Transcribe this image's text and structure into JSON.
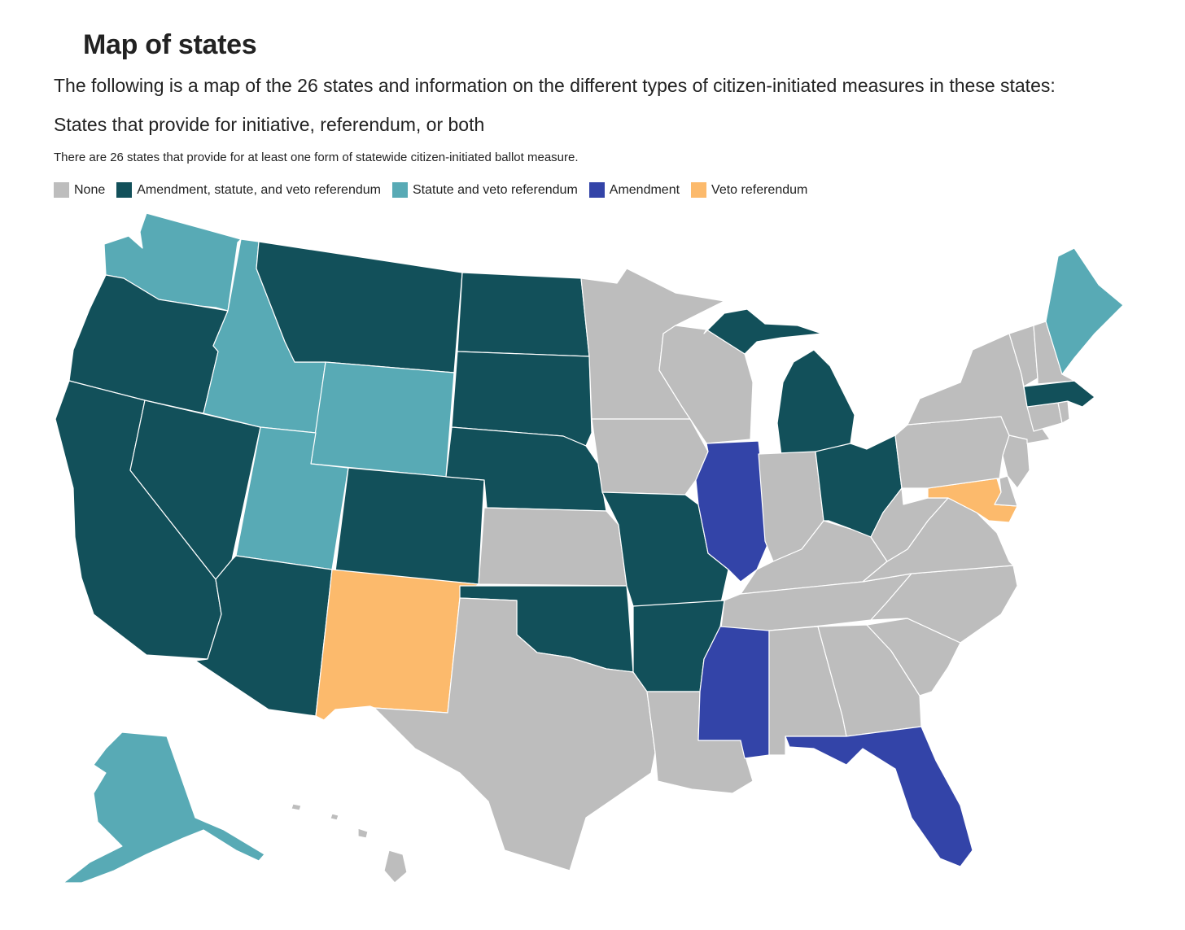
{
  "heading": "Map of states",
  "intro": "The following is a map of the 26 states and information on the different types of citizen-initiated measures in these states:",
  "map": {
    "title": "States that provide for initiative, referendum, or both",
    "subtitle": "There are 26 states that provide for at least one form of statewide citizen-initiated ballot measure.",
    "legend": [
      {
        "key": "none",
        "label": "None",
        "color": "#bdbdbd"
      },
      {
        "key": "asv",
        "label": "Amendment, statute, and veto referendum",
        "color": "#12505a"
      },
      {
        "key": "sv",
        "label": "Statute and veto referendum",
        "color": "#58aab5"
      },
      {
        "key": "am",
        "label": "Amendment",
        "color": "#3344a8"
      },
      {
        "key": "vr",
        "label": "Veto referendum",
        "color": "#fcba6c"
      }
    ],
    "states": {
      "WA": "sv",
      "OR": "asv",
      "CA": "asv",
      "ID": "sv",
      "NV": "asv",
      "MT": "asv",
      "WY": "sv",
      "UT": "sv",
      "AZ": "asv",
      "CO": "asv",
      "NM": "vr",
      "ND": "asv",
      "SD": "asv",
      "NE": "asv",
      "KS": "none",
      "OK": "asv",
      "TX": "none",
      "MN": "none",
      "IA": "none",
      "MO": "asv",
      "AR": "asv",
      "LA": "none",
      "WI": "none",
      "IL": "am",
      "MI": "asv",
      "IN": "none",
      "OH": "asv",
      "KY": "none",
      "TN": "none",
      "MS": "am",
      "AL": "none",
      "GA": "none",
      "FL": "am",
      "SC": "none",
      "NC": "none",
      "VA": "none",
      "WV": "none",
      "MD": "vr",
      "DE": "none",
      "NJ": "none",
      "PA": "none",
      "NY": "none",
      "CT": "none",
      "RI": "none",
      "MA": "asv",
      "VT": "none",
      "NH": "none",
      "ME": "sv",
      "AK": "sv",
      "HI": "none"
    }
  }
}
